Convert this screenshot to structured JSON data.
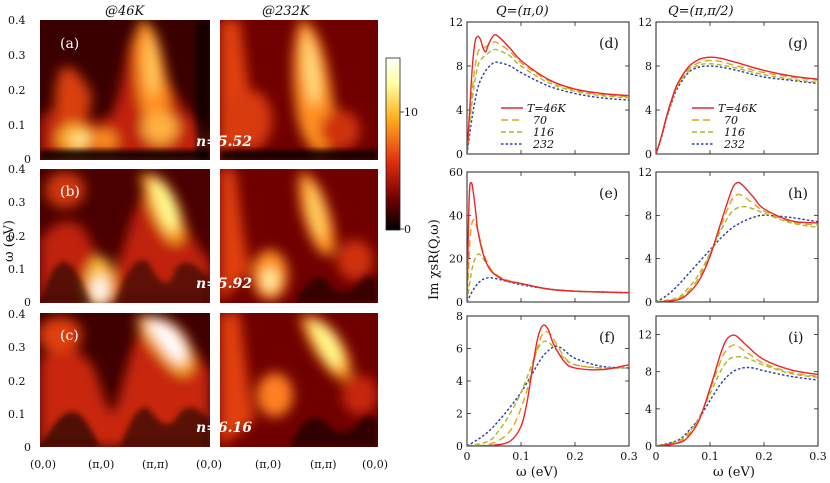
{
  "chart_data": {
    "heatmap": {
      "type": "heatmap",
      "column_titles": [
        "@46K",
        "@232K"
      ],
      "ylabel": "ω (eV)",
      "ylim": [
        0,
        0.4
      ],
      "yticks": [
        "0.4",
        "0.3",
        "0.2",
        "0.1",
        "0"
      ],
      "xticks": [
        "(0,0)",
        "(π,0)",
        "(π,π)",
        "(0,0)",
        "(π,0)",
        "(π,π)",
        "(0,0)"
      ],
      "panel_labels": [
        "(a)",
        "(b)",
        "(c)"
      ],
      "fillings": [
        "n=5.52",
        "n=5.92",
        "n=6.16"
      ],
      "colorbar_ticks": [
        "10",
        "0"
      ],
      "colorbar_range": [
        0,
        15
      ]
    },
    "line_panels": {
      "type": "line",
      "column_titles": [
        "Q=(π,0)",
        "Q=(π,π/2)"
      ],
      "xlabel": "ω (eV)",
      "ylabel": "Im χsR(Q,ω)",
      "xlim": [
        0,
        0.3
      ],
      "xticks": [
        "0",
        "0.1",
        "0.2",
        "0.3"
      ],
      "legend": [
        "T=46K",
        "70",
        "116",
        "232"
      ],
      "series_colors": [
        "#e8262b",
        "#e8a21a",
        "#a8b82c",
        "#2a3fa8"
      ],
      "panels": [
        {
          "label": "(d)",
          "ylim": [
            0,
            12
          ],
          "yticks": [
            "0",
            "4",
            "8",
            "12"
          ],
          "series": [
            {
              "name": "T=46K",
              "x": [
                0,
                0.005,
                0.01,
                0.015,
                0.02,
                0.025,
                0.03,
                0.035,
                0.04,
                0.05,
                0.06,
                0.08,
                0.1,
                0.15,
                0.2,
                0.25,
                0.3
              ],
              "values": [
                0,
                4,
                8,
                10.2,
                10.7,
                10.4,
                9.6,
                9.3,
                10,
                10.8,
                10.6,
                9.6,
                8.5,
                6.8,
                5.9,
                5.5,
                5.3
              ]
            },
            {
              "name": "70",
              "x": [
                0,
                0.01,
                0.02,
                0.03,
                0.04,
                0.05,
                0.06,
                0.08,
                0.1,
                0.15,
                0.2,
                0.25,
                0.3
              ],
              "values": [
                0,
                6,
                9.2,
                9.6,
                9.9,
                10.2,
                10,
                9.3,
                8.3,
                6.7,
                5.8,
                5.4,
                5.2
              ]
            },
            {
              "name": "116",
              "x": [
                0,
                0.01,
                0.02,
                0.03,
                0.04,
                0.05,
                0.06,
                0.08,
                0.1,
                0.15,
                0.2,
                0.25,
                0.3
              ],
              "values": [
                0,
                5,
                8,
                8.8,
                9.2,
                9.5,
                9.4,
                8.9,
                8,
                6.5,
                5.7,
                5.3,
                5.1
              ]
            },
            {
              "name": "232",
              "x": [
                0,
                0.01,
                0.02,
                0.03,
                0.04,
                0.05,
                0.06,
                0.08,
                0.1,
                0.15,
                0.2,
                0.25,
                0.3
              ],
              "values": [
                0,
                3.5,
                6,
                7.2,
                7.9,
                8.3,
                8.3,
                8,
                7.4,
                6.2,
                5.5,
                5.1,
                4.9
              ]
            }
          ]
        },
        {
          "label": "(e)",
          "ylim": [
            0,
            60
          ],
          "yticks": [
            "0",
            "20",
            "40",
            "60"
          ],
          "series": [
            {
              "name": "T=46K",
              "x": [
                0,
                0.004,
                0.008,
                0.012,
                0.016,
                0.02,
                0.03,
                0.04,
                0.05,
                0.07,
                0.1,
                0.15,
                0.2,
                0.25,
                0.3
              ],
              "values": [
                0,
                48,
                55,
                50,
                42,
                33,
                22,
                16,
                13,
                10,
                8.5,
                6,
                5,
                4.6,
                4.3
              ]
            },
            {
              "name": "70",
              "x": [
                0,
                0.006,
                0.012,
                0.02,
                0.03,
                0.04,
                0.05,
                0.07,
                0.1,
                0.15,
                0.2,
                0.25,
                0.3
              ],
              "values": [
                0,
                30,
                38,
                33,
                23,
                17,
                13.5,
                10.5,
                8.5,
                6,
                5,
                4.6,
                4.3
              ]
            },
            {
              "name": "116",
              "x": [
                0,
                0.01,
                0.02,
                0.03,
                0.04,
                0.05,
                0.07,
                0.1,
                0.15,
                0.2,
                0.25,
                0.3
              ],
              "values": [
                0,
                16,
                22,
                20,
                16,
                13,
                10.5,
                8.5,
                6,
                5,
                4.6,
                4.3
              ]
            },
            {
              "name": "232",
              "x": [
                0,
                0.01,
                0.02,
                0.03,
                0.04,
                0.05,
                0.06,
                0.08,
                0.1,
                0.15,
                0.2,
                0.25,
                0.3
              ],
              "values": [
                0,
                5,
                8.5,
                10.5,
                11.2,
                11,
                10.4,
                9.2,
                8,
                6,
                5,
                4.6,
                4.3
              ]
            }
          ]
        },
        {
          "label": "(f)",
          "ylim": [
            0,
            8
          ],
          "yticks": [
            "0",
            "2",
            "4",
            "6",
            "8"
          ],
          "series": [
            {
              "name": "T=46K",
              "x": [
                0,
                0.05,
                0.08,
                0.1,
                0.11,
                0.12,
                0.13,
                0.14,
                0.15,
                0.16,
                0.18,
                0.2,
                0.25,
                0.3
              ],
              "values": [
                0,
                0.05,
                0.3,
                1.2,
                2.5,
                4.5,
                6.5,
                7.4,
                7.2,
                6.3,
                5.2,
                4.8,
                4.7,
                5
              ]
            },
            {
              "name": "70",
              "x": [
                0,
                0.04,
                0.07,
                0.09,
                0.11,
                0.12,
                0.13,
                0.14,
                0.15,
                0.16,
                0.18,
                0.2,
                0.25,
                0.3
              ],
              "values": [
                0,
                0.1,
                0.6,
                1.5,
                3.3,
                4.7,
                6,
                6.9,
                7,
                6.6,
                5.5,
                5,
                4.8,
                4.9
              ]
            },
            {
              "name": "116",
              "x": [
                0,
                0.04,
                0.06,
                0.08,
                0.1,
                0.12,
                0.13,
                0.14,
                0.15,
                0.16,
                0.18,
                0.2,
                0.25,
                0.3
              ],
              "values": [
                0,
                0.3,
                1,
                2,
                3.3,
                5,
                5.9,
                6.4,
                6.4,
                6.1,
                5.4,
                5,
                4.8,
                4.8
              ]
            },
            {
              "name": "232",
              "x": [
                0,
                0.02,
                0.04,
                0.06,
                0.08,
                0.1,
                0.12,
                0.14,
                0.16,
                0.17,
                0.18,
                0.2,
                0.25,
                0.3
              ],
              "values": [
                0,
                0.4,
                0.9,
                1.6,
                2.4,
                3.3,
                4.4,
                5.5,
                6.1,
                6.1,
                5.9,
                5.4,
                4.9,
                4.8
              ]
            }
          ]
        },
        {
          "label": "(g)",
          "ylim": [
            0,
            12
          ],
          "yticks": [
            "0",
            "4",
            "8",
            "12"
          ],
          "series": [
            {
              "name": "T=46K",
              "x": [
                0,
                0.01,
                0.02,
                0.03,
                0.04,
                0.06,
                0.08,
                0.1,
                0.12,
                0.15,
                0.2,
                0.25,
                0.3
              ],
              "values": [
                0,
                1.6,
                3.5,
                5.1,
                6.4,
                7.9,
                8.6,
                8.8,
                8.7,
                8.3,
                7.6,
                7.1,
                6.8
              ]
            },
            {
              "name": "70",
              "x": [
                0,
                0.01,
                0.02,
                0.03,
                0.04,
                0.06,
                0.08,
                0.1,
                0.12,
                0.15,
                0.2,
                0.25,
                0.3
              ],
              "values": [
                0,
                1.6,
                3.4,
                5,
                6.3,
                7.7,
                8.3,
                8.5,
                8.4,
                8,
                7.4,
                7,
                6.7
              ]
            },
            {
              "name": "116",
              "x": [
                0,
                0.01,
                0.02,
                0.03,
                0.04,
                0.06,
                0.08,
                0.1,
                0.12,
                0.15,
                0.2,
                0.25,
                0.3
              ],
              "values": [
                0,
                1.6,
                3.4,
                4.9,
                6.2,
                7.5,
                8.1,
                8.2,
                8.1,
                7.8,
                7.2,
                6.8,
                6.5
              ]
            },
            {
              "name": "232",
              "x": [
                0,
                0.01,
                0.02,
                0.03,
                0.04,
                0.06,
                0.08,
                0.1,
                0.12,
                0.15,
                0.2,
                0.25,
                0.3
              ],
              "values": [
                0,
                1.5,
                3.3,
                4.8,
                6,
                7.4,
                7.9,
                8,
                7.9,
                7.6,
                7,
                6.7,
                6.4
              ]
            }
          ]
        },
        {
          "label": "(h)",
          "ylim": [
            0,
            12
          ],
          "yticks": [
            "0",
            "4",
            "8",
            "12"
          ],
          "series": [
            {
              "name": "T=46K",
              "x": [
                0,
                0.04,
                0.06,
                0.08,
                0.1,
                0.12,
                0.14,
                0.15,
                0.16,
                0.18,
                0.2,
                0.25,
                0.3
              ],
              "values": [
                0,
                0.2,
                0.8,
                2,
                4.2,
                7.3,
                10.3,
                11,
                10.8,
                9.7,
                8.6,
                7.5,
                7.3
              ]
            },
            {
              "name": "70",
              "x": [
                0,
                0.04,
                0.06,
                0.08,
                0.1,
                0.12,
                0.14,
                0.15,
                0.16,
                0.18,
                0.2,
                0.25,
                0.3
              ],
              "values": [
                0,
                0.3,
                1,
                2.3,
                4.4,
                7,
                9.4,
                9.9,
                9.8,
                9.1,
                8.4,
                7.4,
                7.1
              ]
            },
            {
              "name": "116",
              "x": [
                0,
                0.04,
                0.06,
                0.08,
                0.1,
                0.12,
                0.14,
                0.16,
                0.18,
                0.2,
                0.25,
                0.3
              ],
              "values": [
                0,
                0.4,
                1.3,
                2.6,
                4.5,
                6.6,
                8.3,
                8.8,
                8.6,
                8.2,
                7.3,
                6.9
              ]
            },
            {
              "name": "232",
              "x": [
                0,
                0.02,
                0.04,
                0.06,
                0.08,
                0.1,
                0.12,
                0.14,
                0.16,
                0.18,
                0.2,
                0.25,
                0.3
              ],
              "values": [
                0,
                0.6,
                1.5,
                2.6,
                3.7,
                4.8,
                5.9,
                6.8,
                7.4,
                7.8,
                8,
                7.8,
                7.4
              ]
            }
          ]
        },
        {
          "label": "(i)",
          "ylim": [
            0,
            14
          ],
          "yticks": [
            "0",
            "4",
            "8",
            "12"
          ],
          "series": [
            {
              "name": "T=46K",
              "x": [
                0,
                0.04,
                0.06,
                0.08,
                0.1,
                0.12,
                0.13,
                0.14,
                0.15,
                0.17,
                0.2,
                0.25,
                0.3
              ],
              "values": [
                0,
                0.3,
                1,
                2.8,
                6.2,
                10,
                11.4,
                11.9,
                11.8,
                10.7,
                9.3,
                8.2,
                7.7
              ]
            },
            {
              "name": "70",
              "x": [
                0,
                0.04,
                0.06,
                0.08,
                0.1,
                0.12,
                0.13,
                0.14,
                0.15,
                0.17,
                0.2,
                0.25,
                0.3
              ],
              "values": [
                0,
                0.4,
                1.2,
                3,
                6,
                9.2,
                10.3,
                10.8,
                10.8,
                10,
                8.9,
                7.9,
                7.5
              ]
            },
            {
              "name": "116",
              "x": [
                0,
                0.04,
                0.06,
                0.08,
                0.1,
                0.12,
                0.13,
                0.14,
                0.16,
                0.18,
                0.2,
                0.25,
                0.3
              ],
              "values": [
                0,
                0.5,
                1.4,
                3.1,
                5.6,
                8.1,
                9,
                9.5,
                9.6,
                9.2,
                8.7,
                7.8,
                7.4
              ]
            },
            {
              "name": "232",
              "x": [
                0,
                0.04,
                0.06,
                0.08,
                0.1,
                0.12,
                0.14,
                0.16,
                0.18,
                0.2,
                0.25,
                0.3
              ],
              "values": [
                0,
                0.6,
                1.6,
                3,
                4.9,
                6.7,
                7.9,
                8.4,
                8.4,
                8.1,
                7.5,
                7.1
              ]
            }
          ]
        }
      ]
    }
  }
}
